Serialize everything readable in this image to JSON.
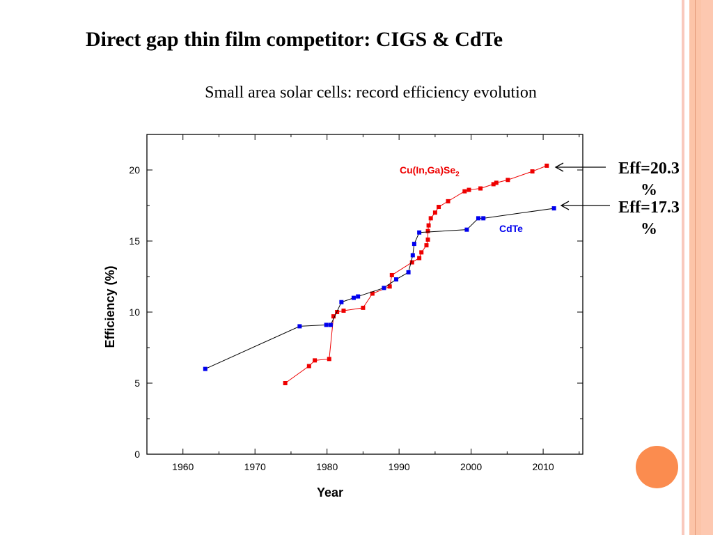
{
  "slide": {
    "title": "Direct gap thin film competitor: CIGS & CdTe",
    "subtitle": "Small area solar cells: record efficiency evolution",
    "annotations": [
      {
        "text": "Eff=20.3 %"
      },
      {
        "text": "Eff=17.3 %"
      }
    ],
    "colors": {
      "stripe": "#fcc4a8",
      "circle": "#fb8c4f"
    }
  },
  "chart_data": {
    "type": "line",
    "title": "",
    "xlabel": "Year",
    "ylabel": "Efficiency (%)",
    "xlim": [
      1955,
      2015.5
    ],
    "ylim": [
      0,
      22.5
    ],
    "xticks": [
      1960,
      1970,
      1980,
      1990,
      2000,
      2010
    ],
    "yticks": [
      0,
      5,
      10,
      15,
      20
    ],
    "grid": false,
    "series": [
      {
        "name": "Cu(In,Ga)Se2",
        "label_main": "Cu(In,Ga)Se",
        "label_sub": "2",
        "color": "#ee0000",
        "line_color": "#ee0000",
        "x": [
          1974.2,
          1977.5,
          1978.3,
          1980.3,
          1980.9,
          1981.4,
          1982.3,
          1985.0,
          1986.3,
          1988.7,
          1989.0,
          1991.8,
          1992.8,
          1993.1,
          1993.8,
          1994.0,
          1994.0,
          1994.1,
          1994.4,
          1995.0,
          1995.5,
          1996.8,
          1999.1,
          1999.7,
          2001.3,
          2003.1,
          2003.5,
          2005.1,
          2008.5,
          2010.5
        ],
        "y": [
          5.0,
          6.2,
          6.6,
          6.7,
          9.7,
          10.0,
          10.1,
          10.3,
          11.3,
          11.8,
          12.6,
          13.5,
          13.8,
          14.2,
          14.7,
          15.1,
          15.7,
          16.1,
          16.6,
          17.0,
          17.4,
          17.8,
          18.5,
          18.6,
          18.7,
          19.0,
          19.1,
          19.3,
          19.9,
          20.3
        ]
      },
      {
        "name": "CdTe",
        "label_main": "CdTe",
        "label_sub": "",
        "color": "#0000ee",
        "line_color": "#000000",
        "x": [
          1963.1,
          1976.2,
          1979.9,
          1980.5,
          1982.0,
          1983.7,
          1984.3,
          1987.9,
          1989.6,
          1991.3,
          1991.9,
          1992.1,
          1992.8,
          1999.4,
          2001.0,
          2001.7,
          2011.5
        ],
        "y": [
          6.0,
          9.0,
          9.1,
          9.1,
          10.7,
          11.0,
          11.1,
          11.7,
          12.3,
          12.8,
          14.0,
          14.8,
          15.6,
          15.8,
          16.6,
          16.6,
          17.3
        ]
      }
    ]
  }
}
